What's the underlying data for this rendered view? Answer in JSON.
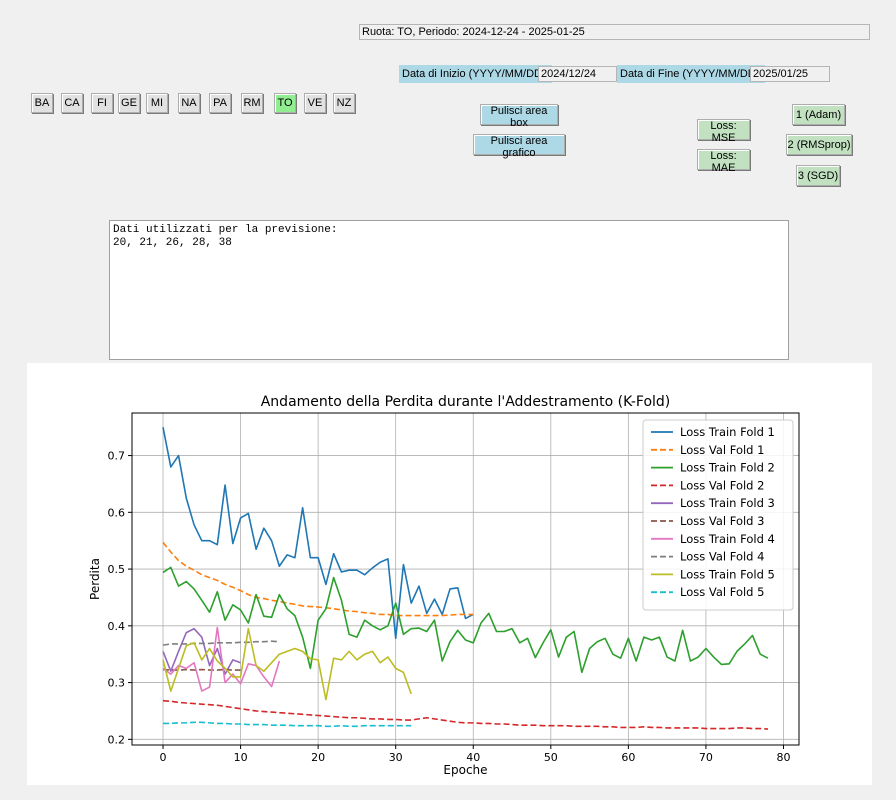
{
  "window": {
    "readout": "Ruota: TO, Periodo: 2024-12-24 - 2025-01-25"
  },
  "dates": {
    "start_label": "Data di Inizio (YYYY/MM/DD):",
    "start_value": "2024/12/24",
    "end_label": "Data di Fine (YYYY/MM/DD):",
    "end_value": "2025/01/25"
  },
  "wheels": {
    "items": [
      "BA",
      "CA",
      "FI",
      "GE",
      "MI",
      "NA",
      "PA",
      "RM",
      "TO",
      "VE",
      "NZ"
    ],
    "selected": "TO",
    "selected_color": "#90ee90"
  },
  "actions": {
    "clear_box": "Pulisci area box",
    "clear_chart": "Pulisci area grafico"
  },
  "loss": {
    "mse": "Loss: MSE",
    "mae": "Loss: MAE"
  },
  "optimizers": {
    "adam": "1 (Adam)",
    "rmsprop": "2 (RMSprop)",
    "sgd": "3 (SGD)"
  },
  "output": {
    "line1": "Dati utilizzati per la previsione:",
    "line2": "20, 21, 26, 28, 38"
  },
  "chart_data": {
    "type": "line",
    "title": "Andamento della Perdita durante l'Addestramento (K-Fold)",
    "xlabel": "Epoche",
    "ylabel": "Perdita",
    "xlim": [
      -4,
      82
    ],
    "ylim": [
      0.19,
      0.775
    ],
    "xticks": [
      0,
      10,
      20,
      30,
      40,
      50,
      60,
      70,
      80
    ],
    "yticks": [
      0.2,
      0.3,
      0.4,
      0.5,
      0.6,
      0.7
    ],
    "grid": true,
    "legend_position": "top-right",
    "series": [
      {
        "name": "Loss Train Fold 1",
        "color": "#1f77b4",
        "dash": false,
        "x0": 0,
        "values": [
          0.75,
          0.68,
          0.7,
          0.625,
          0.578,
          0.55,
          0.55,
          0.543,
          0.648,
          0.545,
          0.59,
          0.598,
          0.535,
          0.572,
          0.55,
          0.505,
          0.525,
          0.52,
          0.608,
          0.52,
          0.52,
          0.473,
          0.527,
          0.495,
          0.498,
          0.498,
          0.49,
          0.502,
          0.512,
          0.518,
          0.378,
          0.508,
          0.44,
          0.47,
          0.422,
          0.447,
          0.42,
          0.465,
          0.467,
          0.413,
          0.42
        ]
      },
      {
        "name": "Loss Val Fold 1",
        "color": "#ff7f0e",
        "dash": true,
        "x0": 0,
        "values": [
          0.547,
          0.53,
          0.515,
          0.505,
          0.498,
          0.49,
          0.485,
          0.48,
          0.473,
          0.468,
          0.462,
          0.455,
          0.45,
          0.448,
          0.445,
          0.443,
          0.44,
          0.438,
          0.435,
          0.434,
          0.433,
          0.432,
          0.43,
          0.428,
          0.426,
          0.425,
          0.423,
          0.422,
          0.42,
          0.42,
          0.418,
          0.418,
          0.418,
          0.418,
          0.418,
          0.418,
          0.418,
          0.419,
          0.42,
          0.42,
          0.42
        ]
      },
      {
        "name": "Loss Train Fold 2",
        "color": "#2ca02c",
        "dash": false,
        "x0": 0,
        "values": [
          0.494,
          0.503,
          0.47,
          0.478,
          0.465,
          0.445,
          0.424,
          0.46,
          0.41,
          0.437,
          0.428,
          0.405,
          0.455,
          0.417,
          0.415,
          0.455,
          0.43,
          0.418,
          0.38,
          0.325,
          0.41,
          0.43,
          0.485,
          0.445,
          0.385,
          0.38,
          0.41,
          0.4,
          0.393,
          0.4,
          0.44,
          0.385,
          0.395,
          0.396,
          0.39,
          0.41,
          0.338,
          0.372,
          0.392,
          0.375,
          0.37,
          0.405,
          0.422,
          0.39,
          0.39,
          0.395,
          0.37,
          0.378,
          0.344,
          0.37,
          0.393,
          0.345,
          0.38,
          0.39,
          0.318,
          0.36,
          0.372,
          0.378,
          0.35,
          0.343,
          0.378,
          0.338,
          0.38,
          0.375,
          0.38,
          0.345,
          0.338,
          0.392,
          0.338,
          0.345,
          0.36,
          0.345,
          0.332,
          0.333,
          0.355,
          0.368,
          0.383,
          0.35,
          0.343
        ]
      },
      {
        "name": "Loss Val Fold 2",
        "color": "#d62728",
        "dash": true,
        "x0": 0,
        "values": [
          0.268,
          0.267,
          0.265,
          0.264,
          0.263,
          0.262,
          0.261,
          0.26,
          0.258,
          0.256,
          0.254,
          0.252,
          0.25,
          0.249,
          0.248,
          0.247,
          0.246,
          0.245,
          0.244,
          0.243,
          0.242,
          0.241,
          0.24,
          0.239,
          0.238,
          0.238,
          0.237,
          0.236,
          0.236,
          0.235,
          0.235,
          0.234,
          0.234,
          0.236,
          0.238,
          0.236,
          0.234,
          0.232,
          0.23,
          0.229,
          0.229,
          0.228,
          0.228,
          0.227,
          0.227,
          0.226,
          0.225,
          0.225,
          0.225,
          0.224,
          0.224,
          0.224,
          0.224,
          0.223,
          0.223,
          0.223,
          0.223,
          0.222,
          0.222,
          0.221,
          0.221,
          0.221,
          0.222,
          0.221,
          0.221,
          0.22,
          0.22,
          0.22,
          0.22,
          0.22,
          0.219,
          0.219,
          0.219,
          0.219,
          0.22,
          0.22,
          0.219,
          0.219,
          0.218
        ]
      },
      {
        "name": "Loss Train Fold 3",
        "color": "#9467bd",
        "dash": false,
        "x0": 0,
        "values": [
          0.355,
          0.32,
          0.355,
          0.388,
          0.395,
          0.38,
          0.33,
          0.36,
          0.315,
          0.34,
          0.335
        ]
      },
      {
        "name": "Loss Val Fold 3",
        "color": "#8c564b",
        "dash": true,
        "x0": 0,
        "values": [
          0.323,
          0.322,
          0.322,
          0.323,
          0.322,
          0.323,
          0.322,
          0.322,
          0.323,
          0.322,
          0.322
        ]
      },
      {
        "name": "Loss Train Fold 4",
        "color": "#e377c2",
        "dash": false,
        "x0": 0,
        "values": [
          0.325,
          0.315,
          0.33,
          0.325,
          0.335,
          0.285,
          0.292,
          0.397,
          0.3,
          0.315,
          0.298,
          0.333,
          0.33,
          0.31,
          0.293,
          0.338
        ]
      },
      {
        "name": "Loss Val Fold 4",
        "color": "#7f7f7f",
        "dash": true,
        "x0": 0,
        "values": [
          0.366,
          0.368,
          0.368,
          0.368,
          0.369,
          0.369,
          0.369,
          0.37,
          0.37,
          0.37,
          0.371,
          0.371,
          0.372,
          0.372,
          0.373,
          0.372
        ]
      },
      {
        "name": "Loss Train Fold 5",
        "color": "#bcbd22",
        "dash": false,
        "x0": 0,
        "values": [
          0.34,
          0.285,
          0.325,
          0.365,
          0.37,
          0.34,
          0.36,
          0.338,
          0.325,
          0.31,
          0.31,
          0.395,
          0.33,
          0.32,
          0.335,
          0.35,
          0.355,
          0.36,
          0.355,
          0.342,
          0.34,
          0.27,
          0.343,
          0.34,
          0.355,
          0.34,
          0.35,
          0.355,
          0.335,
          0.345,
          0.325,
          0.318,
          0.28
        ]
      },
      {
        "name": "Loss Val Fold 5",
        "color": "#17becf",
        "dash": true,
        "x0": 0,
        "values": [
          0.228,
          0.228,
          0.229,
          0.229,
          0.23,
          0.23,
          0.229,
          0.228,
          0.228,
          0.227,
          0.227,
          0.226,
          0.226,
          0.226,
          0.225,
          0.225,
          0.225,
          0.224,
          0.224,
          0.224,
          0.224,
          0.223,
          0.223,
          0.224,
          0.223,
          0.223,
          0.224,
          0.224,
          0.224,
          0.224,
          0.224,
          0.224,
          0.224
        ]
      }
    ]
  }
}
